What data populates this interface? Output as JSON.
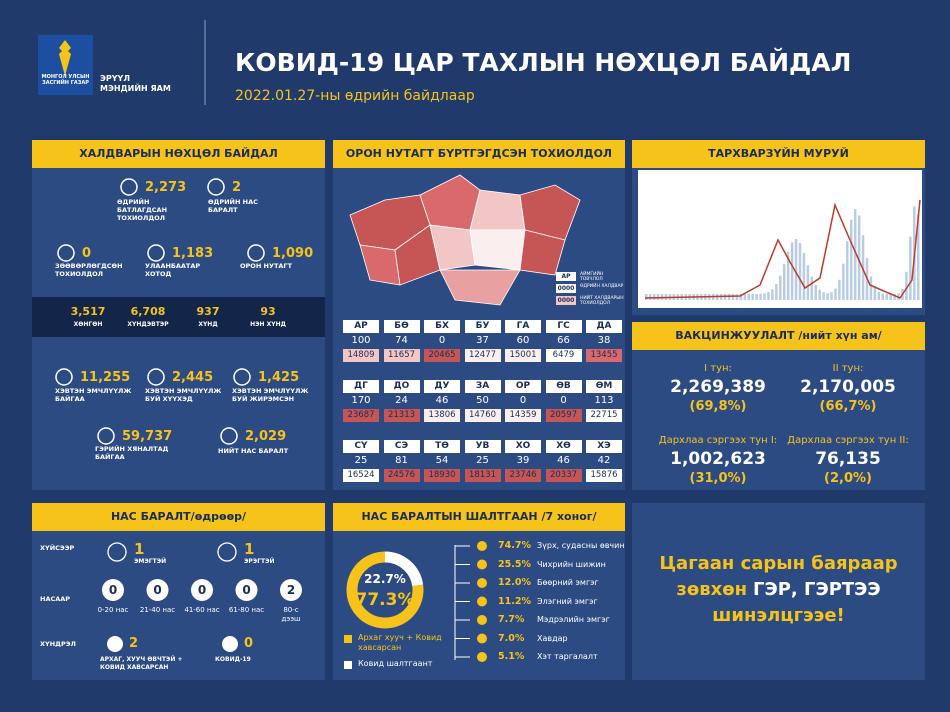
{
  "header": {
    "emblem_text": "МОНГОЛ УЛСЫН ЗАСГИЙН ГАЗАР",
    "ministry": [
      "ЭРҮҮЛ",
      "МЭНДИЙН ЯАМ"
    ],
    "title": "КОВИД-19 ЦАР ТАХЛЫН НӨХЦӨЛ БАЙДАЛ",
    "date": "2022.01.27-ны өдрийн байдлаар"
  },
  "infection": {
    "title": "ХАЛДВАРЫН НӨХЦӨЛ БАЙДАЛ",
    "stats": [
      {
        "value": "2,273",
        "label": "ӨДРИЙН БАТЛАГДСАН ТОХИОЛДОЛ"
      },
      {
        "value": "2",
        "label": "ӨДРИЙН НАС БАРАЛТ"
      },
      {
        "value": "0",
        "label": "ЗӨӨВӨРЛӨГДСӨН ТОХИОЛДОЛ"
      },
      {
        "value": "1,183",
        "label": "УЛААНБААТАР ХОТОД"
      },
      {
        "value": "1,090",
        "label": "ОРОН НУТАГТ"
      },
      {
        "value": "11,255",
        "label": "ХЭВТЭН ЭМЧЛҮҮЛЖ БАЙГАА"
      },
      {
        "value": "2,445",
        "label": "ХЭВТЭН ЭМЧЛҮҮЛЖ БУЙ ХҮҮХЭД"
      },
      {
        "value": "1,425",
        "label": "ХЭВТЭН ЭМЧЛҮҮЛЖ БУЙ ЖИРЭМСЭН"
      },
      {
        "value": "59,737",
        "label": "ГЭРИЙН ХЯНАЛТАД БАЙГАА"
      },
      {
        "value": "2,029",
        "label": "НИЙТ НАС БАРАЛТ"
      }
    ],
    "severity": [
      {
        "value": "3,517",
        "label": "ХӨНГӨН"
      },
      {
        "value": "6,708",
        "label": "ХҮНДЭВТЭР"
      },
      {
        "value": "937",
        "label": "ХҮНД"
      },
      {
        "value": "93",
        "label": "НЭН ХҮНД"
      }
    ]
  },
  "regions": {
    "title": "ОРОН НУТАГТ БҮРТГЭГДСЭН ТОХИОЛДОЛ",
    "legend": [
      {
        "sample": "АР",
        "label": "АЙМГИЙН ТОВЧЛОЛ"
      },
      {
        "sample": "0000",
        "label": "ӨДРИЙН ХАЛДВАР"
      },
      {
        "sample": "0000",
        "label": "НИЙТ ХАЛДВАРЫН ТОХИОЛДОЛ"
      }
    ],
    "rows": [
      [
        {
          "code": "АР",
          "daily": 100,
          "total": 14809,
          "color": "#f3c6c6"
        },
        {
          "code": "БӨ",
          "daily": 74,
          "total": 11657,
          "color": "#f3c6c6"
        },
        {
          "code": "БХ",
          "daily": 0,
          "total": 20465,
          "color": "#c65556"
        },
        {
          "code": "БУ",
          "daily": 37,
          "total": 12477,
          "color": "#fbeeee"
        },
        {
          "code": "ГА",
          "daily": 60,
          "total": 15001,
          "color": "#fbeeee"
        },
        {
          "code": "ГС",
          "daily": 66,
          "total": 6479,
          "color": "#ffffff"
        },
        {
          "code": "ДА",
          "daily": 38,
          "total": 13455,
          "color": "#d9696a"
        }
      ],
      [
        {
          "code": "ДГ",
          "daily": 170,
          "total": 23687,
          "color": "#c65556"
        },
        {
          "code": "ДО",
          "daily": 24,
          "total": 21313,
          "color": "#c65556"
        },
        {
          "code": "ДУ",
          "daily": 46,
          "total": 13806,
          "color": "#fbeeee"
        },
        {
          "code": "ЗА",
          "daily": 50,
          "total": 14760,
          "color": "#fbeeee"
        },
        {
          "code": "ОР",
          "daily": 0,
          "total": 14359,
          "color": "#fbeeee"
        },
        {
          "code": "ӨВ",
          "daily": 0,
          "total": 20597,
          "color": "#c65556"
        },
        {
          "code": "ӨМ",
          "daily": 113,
          "total": 22715,
          "color": "#ffffff"
        }
      ],
      [
        {
          "code": "СҮ",
          "daily": 25,
          "total": 16524,
          "color": "#ffffff"
        },
        {
          "code": "СЭ",
          "daily": 81,
          "total": 24576,
          "color": "#c65556"
        },
        {
          "code": "ТӨ",
          "daily": 54,
          "total": 18930,
          "color": "#c65556"
        },
        {
          "code": "УВ",
          "daily": 25,
          "total": 18131,
          "color": "#c65556"
        },
        {
          "code": "ХО",
          "daily": 39,
          "total": 23746,
          "color": "#c65556"
        },
        {
          "code": "ХӨ",
          "daily": 46,
          "total": 20337,
          "color": "#c65556"
        },
        {
          "code": "ХЭ",
          "daily": 42,
          "total": 15876,
          "color": "#ffffff"
        }
      ]
    ]
  },
  "curve": {
    "title": "ТАРХВАРЗҮЙН МУРУЙ"
  },
  "vaccination": {
    "title": "ВАКЦИНЖУУЛАЛТ /нийт хүн ам/",
    "doses": [
      {
        "label": "I тун:",
        "count": "2,269,389",
        "share": "(69,8%)"
      },
      {
        "label": "II тун:",
        "count": "2,170,005",
        "share": "(66,7%)"
      },
      {
        "label": "Дархлаа сэргээх тун I:",
        "count": "1,002,623",
        "share": "(31,0%)"
      },
      {
        "label": "Дархлаа сэргээх тун II:",
        "count": "76,135",
        "share": "(2,0%)"
      }
    ]
  },
  "deaths": {
    "title": "НАС БАРАЛТ/өдрөөр/",
    "by_sex": {
      "label": "ХҮЙСЭЭР",
      "items": [
        {
          "value": 1,
          "label": "ЭМЭГТЭЙ"
        },
        {
          "value": 1,
          "label": "ЭРЭГТЭЙ"
        }
      ]
    },
    "by_age": {
      "label": "НАСААР",
      "items": [
        {
          "value": 0,
          "label": "0-20 нас"
        },
        {
          "value": 0,
          "label": "21-40 нас"
        },
        {
          "value": 0,
          "label": "41-60 нас"
        },
        {
          "value": 0,
          "label": "61-80 нас"
        },
        {
          "value": 2,
          "label": "80-с дээш"
        }
      ]
    },
    "by_complication": {
      "label": "ХҮНДРЭЛ",
      "items": [
        {
          "value": 2,
          "label": "АРХАГ, ХУУЧ ӨВЧТЭЙ + КОВИД ХАВСАРСАН"
        },
        {
          "value": 0,
          "label": "КОВИД-19"
        }
      ]
    }
  },
  "causes": {
    "title": "НАС БАРАЛТЫН ШАЛТГААН /7 хоног/",
    "donut": {
      "values": [
        22.7,
        77.3
      ],
      "value_labels": [
        "22.7%",
        "77.3%"
      ],
      "colors": [
        "#ffffff",
        "#f6c31b"
      ]
    },
    "legend": [
      {
        "label": "Архаг хууч + Ковид хавсарсан",
        "color": "#f6c31b"
      },
      {
        "label": "Ковид шалтгаант",
        "color": "#ffffff"
      }
    ],
    "conditions": [
      {
        "share": "74.7%",
        "name": "Зүрх, судасны өвчин"
      },
      {
        "share": "25.5%",
        "name": "Чихрийн шижин"
      },
      {
        "share": "12.0%",
        "name": "Бөөрний эмгэг"
      },
      {
        "share": "11.2%",
        "name": "Элэгний эмгэг"
      },
      {
        "share": "7.7%",
        "name": "Мэдрэлийн эмгэг"
      },
      {
        "share": "7.0%",
        "name": "Хавдар"
      },
      {
        "share": "5.1%",
        "name": "Хэт таргалалт"
      }
    ]
  },
  "message": {
    "lines": [
      [
        {
          "text": "Цагаан сарын баяраар",
          "color": "#f6c31b"
        }
      ],
      [
        {
          "text": "зөвхөн",
          "color": "#f6c31b"
        },
        {
          "text": "ГЭР, ГЭРТЭЭ",
          "color": "#ffffff"
        }
      ],
      [
        {
          "text": "шинэлцгээе!",
          "color": "#f6c31b"
        }
      ]
    ]
  }
}
